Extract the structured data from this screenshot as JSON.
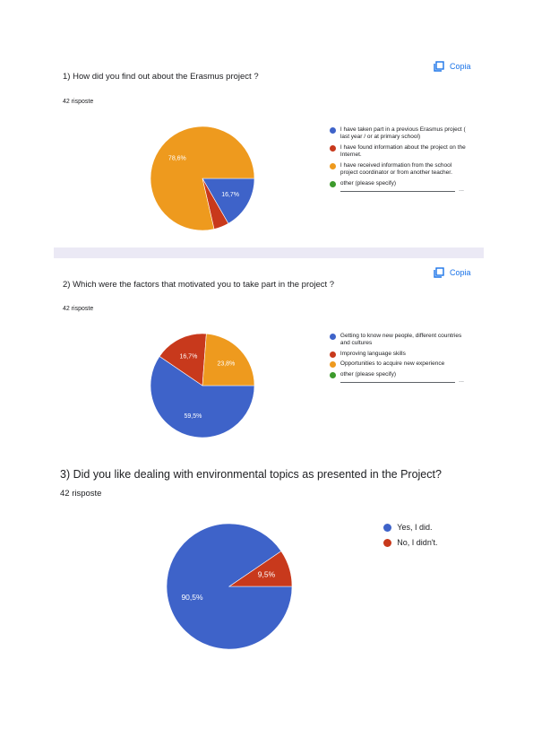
{
  "copy_label": "Copia",
  "sections": [
    {
      "title": "1) How did you find out about the Erasmus project ?",
      "count": "42 risposte",
      "show_copy": true,
      "slices": [
        {
          "label": "I have taken part in a previous Erasmus project ( last year / or at primary school)",
          "value": 16.7,
          "display": "16,7%",
          "color": "#3e63c9"
        },
        {
          "label": "I have found information about the project on the Internet.",
          "value": 4.7,
          "display": "",
          "color": "#c8391c"
        },
        {
          "label": "I have received information from the school project coordinator or from another teacher.",
          "value": 78.6,
          "display": "78,6%",
          "color": "#ee9a1e"
        },
        {
          "label": "other (please specify)",
          "value": 0,
          "display": "",
          "color": "#3c9a2c"
        }
      ],
      "other_line": true
    },
    {
      "title": "2) Which were the factors that motivated you to take part in the project ?",
      "count": "42 risposte",
      "show_copy": true,
      "slices": [
        {
          "label": "Getting to know new people, different countries and cultures",
          "value": 59.5,
          "display": "59,5%",
          "color": "#3e63c9"
        },
        {
          "label": "Improving language skills",
          "value": 16.7,
          "display": "16,7%",
          "color": "#c8391c"
        },
        {
          "label": "Opportunities to acquire new experience",
          "value": 23.8,
          "display": "23,8%",
          "color": "#ee9a1e"
        },
        {
          "label": "other (please specify)",
          "value": 0,
          "display": "",
          "color": "#3c9a2c"
        }
      ],
      "other_line": true
    },
    {
      "title": "3) Did you like dealing with environmental topics as presented in the Project?",
      "count": "42 risposte",
      "show_copy": false,
      "slices": [
        {
          "label": "Yes, I did.",
          "value": 90.5,
          "display": "90,5%",
          "color": "#3e63c9"
        },
        {
          "label": "No, I didn't.",
          "value": 9.5,
          "display": "9,5%",
          "color": "#c8391c"
        }
      ],
      "other_line": false
    }
  ],
  "chart_data": [
    {
      "type": "pie",
      "title": "1) How did you find out about the Erasmus project ?",
      "categories": [
        "I have taken part in a previous Erasmus project ( last year / or at primary school)",
        "I have found information about the project on the Internet.",
        "I have received information from the school project coordinator or from another teacher.",
        "other (please specify)"
      ],
      "values": [
        16.7,
        4.7,
        78.6,
        0
      ],
      "legend": "right"
    },
    {
      "type": "pie",
      "title": "2) Which were the factors that motivated you to take part in the project ?",
      "categories": [
        "Getting to know new people, different countries and cultures",
        "Improving language skills",
        "Opportunities to acquire new experience",
        "other (please specify)"
      ],
      "values": [
        59.5,
        16.7,
        23.8,
        0
      ],
      "legend": "right"
    },
    {
      "type": "pie",
      "title": "3) Did you like dealing with environmental topics as presented in the Project?",
      "categories": [
        "Yes, I did.",
        "No, I didn't."
      ],
      "values": [
        90.5,
        9.5
      ],
      "legend": "right"
    }
  ]
}
